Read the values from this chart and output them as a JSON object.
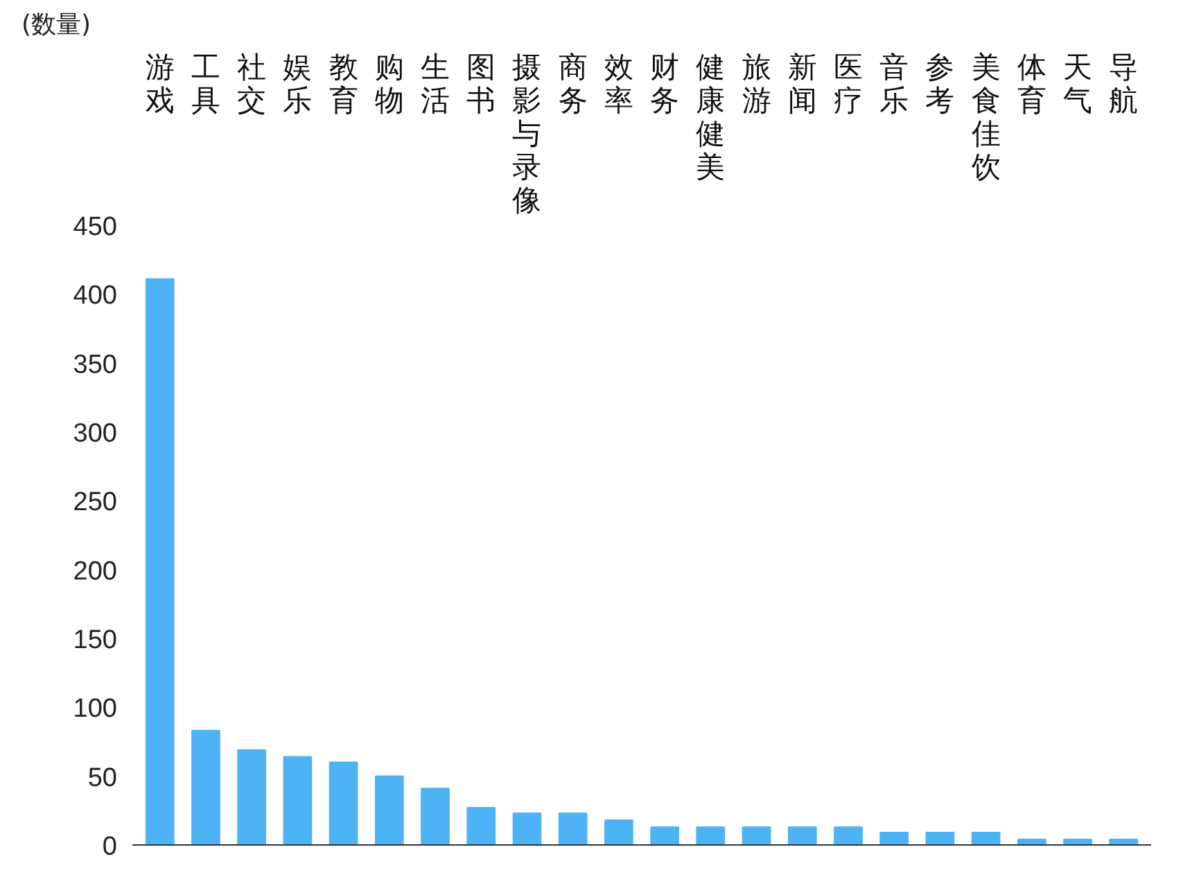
{
  "chart_data": {
    "type": "bar",
    "ylabel": "(数量)",
    "categories": [
      "游戏",
      "工具",
      "社交",
      "娱乐",
      "教育",
      "购物",
      "生活",
      "图书",
      "摄影与录像",
      "商务",
      "效率",
      "财务",
      "健康健美",
      "旅游",
      "新闻",
      "医疗",
      "音乐",
      "参考",
      "美食佳饮",
      "体育",
      "天气",
      "导航"
    ],
    "values": [
      411,
      83,
      69,
      64,
      60,
      50,
      41,
      27,
      23,
      23,
      18,
      13,
      13,
      13,
      13,
      13,
      9,
      9,
      9,
      4,
      4,
      4
    ],
    "color": "#4db3f5",
    "ylim": [
      0,
      450
    ],
    "yticks": [
      0,
      50,
      100,
      150,
      200,
      250,
      300,
      350,
      400,
      450
    ],
    "grid": false
  }
}
